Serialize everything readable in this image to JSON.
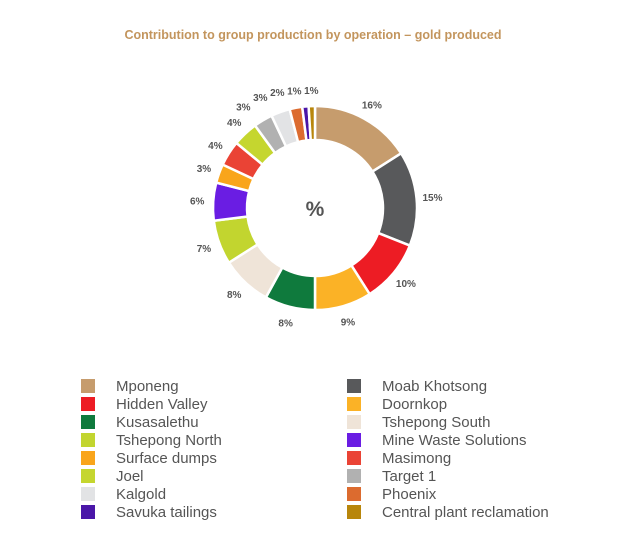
{
  "chart_data": {
    "type": "pie",
    "donut": true,
    "title": "Contribution to group production by operation – gold produced",
    "center_label": "%",
    "legend_position": "bottom",
    "slices": [
      {
        "name": "Mponeng",
        "value": 16,
        "color": "#c69c6d"
      },
      {
        "name": "Moab Khotsong",
        "value": 15,
        "color": "#58595b"
      },
      {
        "name": "Hidden Valley",
        "value": 10,
        "color": "#ed1c24"
      },
      {
        "name": "Doornkop",
        "value": 9,
        "color": "#fbb226"
      },
      {
        "name": "Kusasalethu",
        "value": 8,
        "color": "#0f7a3d"
      },
      {
        "name": "Tshepong South",
        "value": 8,
        "color": "#efe4d8"
      },
      {
        "name": "Tshepong North",
        "value": 7,
        "color": "#c2d52f"
      },
      {
        "name": "Mine Waste Solutions",
        "value": 6,
        "color": "#6a1de3"
      },
      {
        "name": "Surface dumps",
        "value": 3,
        "color": "#f9a51b"
      },
      {
        "name": "Masimong",
        "value": 4,
        "color": "#ea4335"
      },
      {
        "name": "Joel",
        "value": 4,
        "color": "#c5d62f"
      },
      {
        "name": "Target 1",
        "value": 3,
        "color": "#b1b1b1"
      },
      {
        "name": "Kalgold",
        "value": 3,
        "color": "#e2e3e5"
      },
      {
        "name": "Phoenix",
        "value": 2,
        "color": "#dc6b2f"
      },
      {
        "name": "Savuka tailings",
        "value": 1,
        "color": "#4a16a8"
      },
      {
        "name": "Central plant reclamation",
        "value": 1,
        "color": "#b8860b"
      }
    ],
    "legend_left": [
      "Mponeng",
      "Hidden Valley",
      "Kusasalethu",
      "Tshepong North",
      "Surface dumps",
      "Joel",
      "Kalgold",
      "Savuka tailings"
    ],
    "legend_right": [
      "Moab Khotsong",
      "Doornkop",
      "Tshepong South",
      "Mine Waste Solutions",
      "Masimong",
      "Target 1",
      "Phoenix",
      "Central plant reclamation"
    ]
  }
}
